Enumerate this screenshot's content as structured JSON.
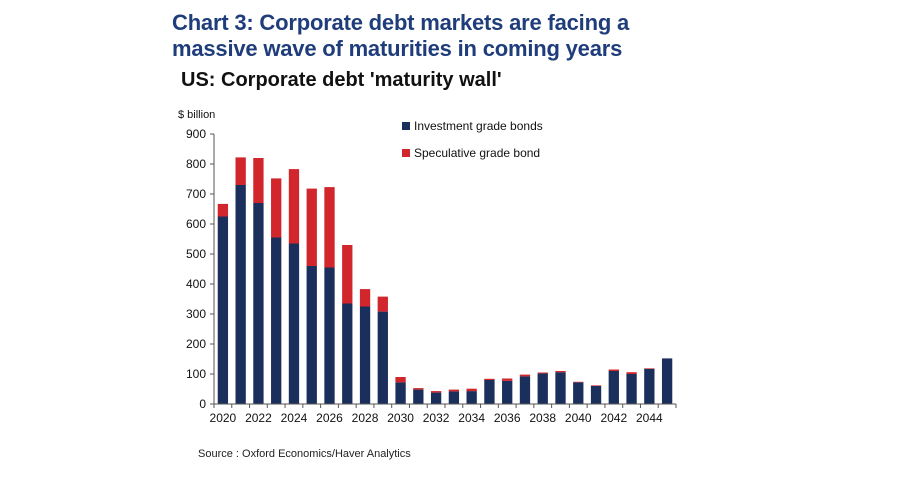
{
  "title_line1": "Chart 3: Corporate debt markets are facing a",
  "title_line2": "massive wave of maturities in coming years",
  "source": "Source : Oxford Economics/Haver Analytics",
  "colors": {
    "title": "#1f3d7a",
    "investment": "#1b2f5c",
    "speculative": "#d0262c"
  },
  "chart_data": {
    "type": "bar",
    "stacked": true,
    "title": "US: Corporate debt 'maturity wall'",
    "ylabel": "$ billion",
    "xlabel": "",
    "ylim": [
      0,
      900
    ],
    "yticks": [
      0,
      100,
      200,
      300,
      400,
      500,
      600,
      700,
      800,
      900
    ],
    "xtick_labels": [
      "2020",
      "2022",
      "2024",
      "2026",
      "2028",
      "2030",
      "2032",
      "2034",
      "2036",
      "2038",
      "2040",
      "2042",
      "2044"
    ],
    "categories": [
      "2020",
      "2021",
      "2022",
      "2023",
      "2024",
      "2025",
      "2026",
      "2027",
      "2028",
      "2029",
      "2030",
      "2031",
      "2032",
      "2033",
      "2034",
      "2035",
      "2036",
      "2037",
      "2038",
      "2039",
      "2040",
      "2041",
      "2042",
      "2043",
      "2044",
      "2045"
    ],
    "legend_position": "top-right",
    "grid": false,
    "series": [
      {
        "name": "Investment grade bonds",
        "color": "#1b2f5c",
        "values": [
          625,
          730,
          670,
          555,
          535,
          460,
          455,
          335,
          325,
          308,
          72,
          48,
          38,
          42,
          43,
          80,
          77,
          92,
          102,
          106,
          72,
          60,
          110,
          100,
          117,
          152
        ]
      },
      {
        "name": "Speculative grade bond",
        "color": "#d0262c",
        "values": [
          42,
          92,
          150,
          197,
          248,
          258,
          268,
          195,
          58,
          50,
          18,
          5,
          5,
          6,
          8,
          4,
          8,
          6,
          3,
          4,
          2,
          2,
          5,
          6,
          2,
          0
        ]
      }
    ]
  }
}
